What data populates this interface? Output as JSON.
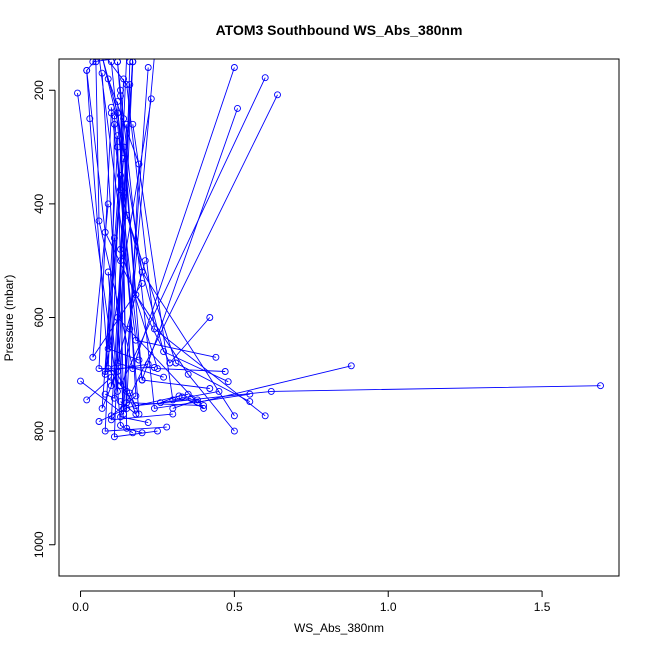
{
  "chart_data": {
    "type": "line",
    "title": "ATOM3 Southbound WS_Abs_380nm",
    "xlabel": "WS_Abs_380nm",
    "ylabel": "Pressure (mbar)",
    "xlim": [
      -0.07,
      1.75
    ],
    "ylim": [
      1055,
      145
    ],
    "y_inverted": true,
    "xticks": [
      {
        "value": 0,
        "label": "0.0"
      },
      {
        "value": 0.5,
        "label": "0.5"
      },
      {
        "value": 1.0,
        "label": "1.0"
      },
      {
        "value": 1.5,
        "label": "1.5"
      }
    ],
    "yticks": [
      {
        "value": 200,
        "label": "200"
      },
      {
        "value": 400,
        "label": "400"
      },
      {
        "value": 600,
        "label": "600"
      },
      {
        "value": 800,
        "label": "800"
      },
      {
        "value": 1000,
        "label": "1000"
      }
    ],
    "color": "#0000ff",
    "marker": "open-circle",
    "series": [
      {
        "x": [
          0.88,
          0.38,
          0.12,
          0.17,
          0.04
        ],
        "y": [
          685,
          750,
          600,
          140,
          150
        ]
      },
      {
        "x": [
          1.69,
          0.62,
          0.18,
          0.09,
          0.03,
          0.02
        ],
        "y": [
          720,
          730,
          755,
          690,
          250,
          165
        ]
      },
      {
        "x": [
          0.64,
          0.14,
          0.22
        ],
        "y": [
          208,
          760,
          160
        ]
      },
      {
        "x": [
          0.6,
          0.13,
          0.16
        ],
        "y": [
          178,
          720,
          150
        ]
      },
      {
        "x": [
          0.51,
          0.2,
          0.14,
          0.07
        ],
        "y": [
          232,
          710,
          300,
          140
        ]
      },
      {
        "x": [
          0.5,
          0.17,
          0.06,
          0.05
        ],
        "y": [
          160,
          690,
          430,
          150
        ]
      },
      {
        "x": [
          0.42,
          0.29,
          0.08,
          0.02,
          0.06
        ],
        "y": [
          600,
          680,
          450,
          165,
          140
        ]
      },
      {
        "x": [
          0.44,
          0.18,
          0.06
        ],
        "y": [
          670,
          640,
          140
        ]
      },
      {
        "x": [
          0.6,
          0.24,
          0.15,
          0.08
        ],
        "y": [
          773,
          620,
          190,
          140
        ]
      },
      {
        "x": [
          0.55,
          0.24,
          0.12
        ],
        "y": [
          735,
          760,
          150
        ]
      },
      {
        "x": [
          0.55,
          0.31,
          0.15,
          0.1
        ],
        "y": [
          748,
          680,
          420,
          150
        ]
      },
      {
        "x": [
          0.5,
          0.2,
          0.12,
          0.07
        ],
        "y": [
          773,
          520,
          240,
          140
        ]
      },
      {
        "x": [
          0.5,
          0.35,
          0.18,
          0.12
        ],
        "y": [
          800,
          700,
          560,
          150
        ]
      },
      {
        "x": [
          0.48,
          0.27,
          0.13,
          0.15
        ],
        "y": [
          713,
          660,
          375,
          140
        ]
      },
      {
        "x": [
          0.47,
          0.25,
          0.13,
          0.17
        ],
        "y": [
          695,
          690,
          480,
          150
        ]
      },
      {
        "x": [
          0.45,
          0.3,
          0.17
        ],
        "y": [
          730,
          745,
          260
        ]
      },
      {
        "x": [
          0.42,
          0.2,
          0.1
        ],
        "y": [
          725,
          710,
          230
        ]
      },
      {
        "x": [
          0.4,
          0.15,
          0.19,
          0.09
        ],
        "y": [
          755,
          750,
          330,
          180
        ]
      },
      {
        "x": [
          0.35,
          0.14,
          0.12
        ],
        "y": [
          735,
          760,
          280
        ]
      },
      {
        "x": [
          0.3,
          0.1,
          0.13
        ],
        "y": [
          770,
          780,
          500
        ]
      },
      {
        "x": [
          0.28,
          0.08,
          0.11
        ],
        "y": [
          793,
          800,
          460
        ]
      },
      {
        "x": [
          0.25,
          0.11,
          0.14
        ],
        "y": [
          800,
          810,
          380
        ]
      },
      {
        "x": [
          0.22,
          0.13,
          0.16,
          0.24
        ],
        "y": [
          785,
          775,
          620,
          140
        ]
      },
      {
        "x": [
          0.2,
          0.15,
          0.13
        ],
        "y": [
          803,
          795,
          210
        ]
      },
      {
        "x": [
          0.17,
          0.13,
          0.09
        ],
        "y": [
          803,
          790,
          520
        ]
      },
      {
        "x": [
          0.27,
          0.12,
          0.15
        ],
        "y": [
          705,
          680,
          260
        ]
      },
      {
        "x": [
          0.24,
          0.06,
          0.1
        ],
        "y": [
          688,
          690,
          240
        ]
      },
      {
        "x": [
          0.22,
          0.08,
          0.12
        ],
        "y": [
          682,
          695,
          300
        ]
      },
      {
        "x": [
          0.19,
          0.09,
          0.13
        ],
        "y": [
          675,
          655,
          350
        ]
      },
      {
        "x": [
          0.21,
          0.1,
          0.11
        ],
        "y": [
          500,
          720,
          260
        ]
      },
      {
        "x": [
          0.2,
          0.04,
          0.09
        ],
        "y": [
          540,
          670,
          400
        ]
      },
      {
        "x": [
          0.23,
          0.08,
          0.14
        ],
        "y": [
          215,
          700,
          320
        ]
      },
      {
        "x": [
          -0.01,
          0.12,
          0.17
        ],
        "y": [
          205,
          730,
          150
        ]
      },
      {
        "x": [
          0.0,
          0.14,
          0.07
        ],
        "y": [
          712,
          770,
          170
        ]
      },
      {
        "x": [
          0.02,
          0.1,
          0.14
        ],
        "y": [
          745,
          705,
          180
        ]
      },
      {
        "x": [
          0.06,
          0.15,
          0.13
        ],
        "y": [
          783,
          760,
          200
        ]
      },
      {
        "x": [
          0.08,
          0.11,
          0.16
        ],
        "y": [
          735,
          742,
          190
        ]
      },
      {
        "x": [
          0.1,
          0.18,
          0.12
        ],
        "y": [
          773,
          738,
          220
        ]
      },
      {
        "x": [
          0.12,
          0.07,
          0.14
        ],
        "y": [
          695,
          760,
          250
        ]
      },
      {
        "x": [
          0.16,
          0.19,
          0.11
        ],
        "y": [
          733,
          770,
          245
        ]
      },
      {
        "x": [
          0.3,
          0.38,
          0.4,
          0.33
        ],
        "y": [
          760,
          745,
          760,
          740
        ]
      },
      {
        "x": [
          0.32,
          0.26,
          0.36
        ],
        "y": [
          738,
          750,
          742
        ]
      },
      {
        "x": [
          0.13,
          0.18,
          0.15,
          0.11
        ],
        "y": [
          748,
          770,
          730,
          690
        ]
      }
    ]
  }
}
